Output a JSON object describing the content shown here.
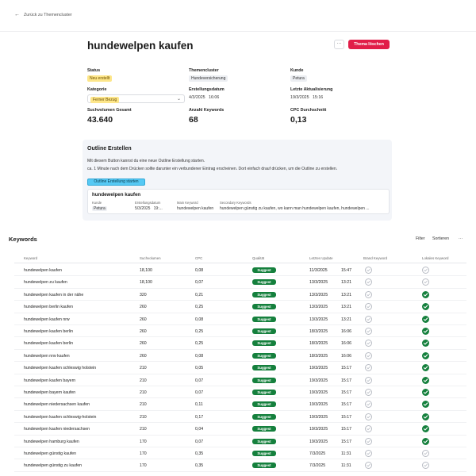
{
  "nav": {
    "back_label": "Zurück zu Themencluster"
  },
  "header": {
    "title": "hundewelpen kaufen",
    "more_label": "···",
    "delete_label": "Thema löschen"
  },
  "info": {
    "status_label": "Status",
    "status_value": "Neu erstellt",
    "cluster_label": "Themencluster",
    "cluster_value": "Hundeversicherung",
    "customer_label": "Kunde",
    "customer_value": "Petura",
    "category_label": "Kategorie",
    "category_value": "Ferner Bezug",
    "created_label": "Erstellungsdatum",
    "created_value": "4/3/2025   16:06",
    "updated_label": "Letzte Aktualisierung",
    "updated_value": "19/3/2025   15:16",
    "volume_label": "Suchvolumen Gesamt",
    "volume_value": "43.640",
    "kwcount_label": "Anzahl Keywords",
    "kwcount_value": "68",
    "cpc_label": "CPC Durchschnitt",
    "cpc_value": "0,13"
  },
  "outline": {
    "title": "Outline Erstellen",
    "line1": "Mit diesem Button kannst du eine neue Outline Erstellung starten.",
    "line2": "ca. 1 Minute nach dem Drücken sollte darunter ein verbundener Eintrag erscheinen. Dort einfach drauf drücken, um die Outline zu erstellen.",
    "button_label": "Outline Erstellung starten",
    "entry": {
      "title": "hundewelpen kaufen",
      "customer_label": "Kunde",
      "customer_value": "Petura",
      "date_label": "Erstellungsdatum",
      "date_value": "5/3/2025   19:...",
      "main_label": "Main Keyword",
      "main_value": "hundewelpen kaufen",
      "secondary_label": "Secondary Keywords",
      "secondary_value": "hundewelpen günstig zu kaufen, wo kann man hundewelpen kaufen, hundewelpen ..."
    }
  },
  "keywords": {
    "heading": "Keywords",
    "filter_label": "Filter",
    "sort_label": "Sortieren",
    "more_label": "···",
    "columns": [
      "Keyword",
      "Suchvolumen",
      "CPC",
      "Qualität",
      "Letztes Update",
      "Brand Keyword",
      "Lokales Keyword"
    ],
    "quality_label": "Suggest",
    "rows": [
      {
        "kw": "hundewelpen kaufen",
        "vol": "18,100",
        "cpc": "0,08",
        "date": "11/3/2025",
        "time": "15:47",
        "brand": false,
        "local": false
      },
      {
        "kw": "hundewelpen zu kaufen",
        "vol": "18,100",
        "cpc": "0,07",
        "date": "13/3/2025",
        "time": "13:21",
        "brand": false,
        "local": false
      },
      {
        "kw": "hundewelpen kaufen in der nähe",
        "vol": "320",
        "cpc": "0,21",
        "date": "13/3/2025",
        "time": "13:21",
        "brand": false,
        "local": true
      },
      {
        "kw": "hundewelpen berlin kaufen",
        "vol": "260",
        "cpc": "0,25",
        "date": "13/3/2025",
        "time": "13:21",
        "brand": false,
        "local": true
      },
      {
        "kw": "hundewelpen kaufen nrw",
        "vol": "260",
        "cpc": "0,08",
        "date": "13/3/2025",
        "time": "13:21",
        "brand": false,
        "local": true
      },
      {
        "kw": "hundewelpen kaufen berlin",
        "vol": "260",
        "cpc": "0,25",
        "date": "18/3/2025",
        "time": "16:06",
        "brand": false,
        "local": true
      },
      {
        "kw": "hundewelpen kaufen berlin",
        "vol": "260",
        "cpc": "0,25",
        "date": "18/3/2025",
        "time": "16:06",
        "brand": false,
        "local": true
      },
      {
        "kw": "hundewelpen nrw kaufen",
        "vol": "260",
        "cpc": "0,08",
        "date": "18/3/2025",
        "time": "16:06",
        "brand": false,
        "local": true
      },
      {
        "kw": "hundewelpen kaufen schleswig holstein",
        "vol": "210",
        "cpc": "0,05",
        "date": "19/3/2025",
        "time": "15:17",
        "brand": false,
        "local": true
      },
      {
        "kw": "hundewelpen kaufen bayern",
        "vol": "210",
        "cpc": "0,07",
        "date": "19/3/2025",
        "time": "15:17",
        "brand": false,
        "local": true
      },
      {
        "kw": "hundewelpen bayern kaufen",
        "vol": "210",
        "cpc": "0,07",
        "date": "19/3/2025",
        "time": "15:17",
        "brand": false,
        "local": true
      },
      {
        "kw": "hundewelpen niedersachsen kaufen",
        "vol": "210",
        "cpc": "0,11",
        "date": "19/3/2025",
        "time": "15:17",
        "brand": false,
        "local": true
      },
      {
        "kw": "hundewelpen kaufen schleswig-holstein",
        "vol": "210",
        "cpc": "0,17",
        "date": "19/3/2025",
        "time": "15:17",
        "brand": false,
        "local": true
      },
      {
        "kw": "hundewelpen kaufen niedersachsen",
        "vol": "210",
        "cpc": "0,04",
        "date": "19/3/2025",
        "time": "15:17",
        "brand": false,
        "local": true
      },
      {
        "kw": "hundewelpen hamburg kaufen",
        "vol": "170",
        "cpc": "0,07",
        "date": "19/3/2025",
        "time": "15:17",
        "brand": false,
        "local": true
      },
      {
        "kw": "hundewelpen günstig kaufen",
        "vol": "170",
        "cpc": "0,35",
        "date": "7/3/2025",
        "time": "11:31",
        "brand": false,
        "local": false
      },
      {
        "kw": "hundewelpen günstig zu kaufen",
        "vol": "170",
        "cpc": "0,35",
        "date": "7/3/2025",
        "time": "11:31",
        "brand": false,
        "local": false
      }
    ]
  },
  "colors": {
    "accent_red": "#e11d48",
    "suggest_green": "#15803d",
    "outline_blue": "#56c9f4"
  }
}
